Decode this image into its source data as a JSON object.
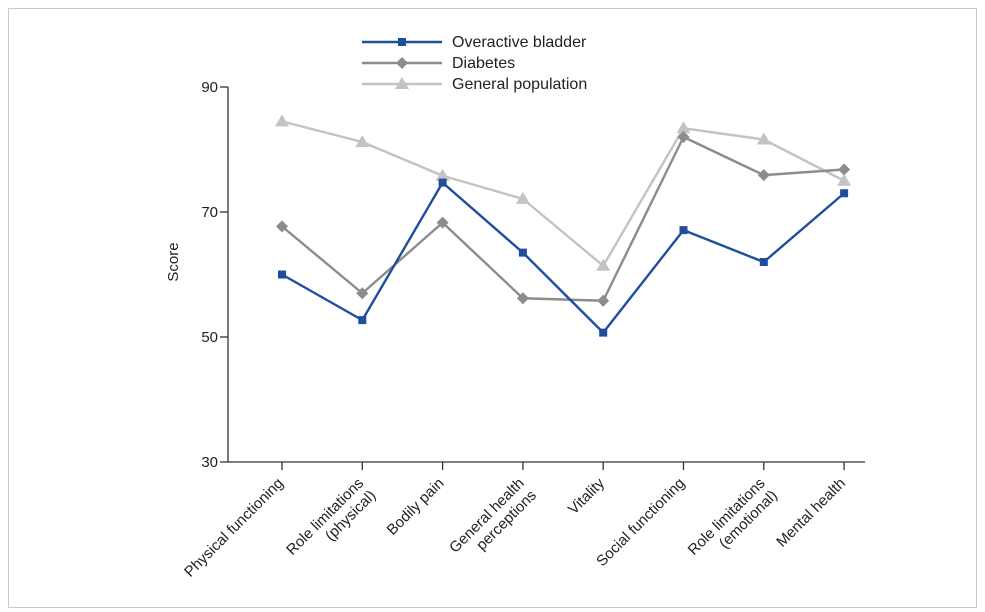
{
  "chart_data": {
    "type": "line",
    "title": "",
    "xlabel": "",
    "ylabel": "Score",
    "ylim": [
      30,
      90
    ],
    "yticks": [
      30,
      50,
      70,
      90
    ],
    "grid": false,
    "legend_position": "top-center",
    "categories": [
      [
        "Physical functioning"
      ],
      [
        "Role limitations",
        "(physical)"
      ],
      [
        "Bodily pain"
      ],
      [
        "General health",
        "perceptions"
      ],
      [
        "Vitality"
      ],
      [
        "Social functioning"
      ],
      [
        "Role limitations",
        "(emotional)"
      ],
      [
        "Mental health"
      ]
    ],
    "series": [
      {
        "name": "Overactive bladder",
        "color": "#1f4e9c",
        "marker": "square",
        "values": [
          60,
          52.7,
          74.7,
          63.5,
          50.7,
          67.1,
          62.0,
          73.0
        ]
      },
      {
        "name": "Diabetes",
        "color": "#8c8c8c",
        "marker": "diamond",
        "values": [
          67.7,
          57.0,
          68.3,
          56.2,
          55.8,
          82.0,
          75.9,
          76.8
        ]
      },
      {
        "name": "General population",
        "color": "#c3c3c3",
        "marker": "triangle",
        "values": [
          84.5,
          81.2,
          75.8,
          72.1,
          61.4,
          83.4,
          81.6,
          75.0
        ]
      }
    ]
  }
}
